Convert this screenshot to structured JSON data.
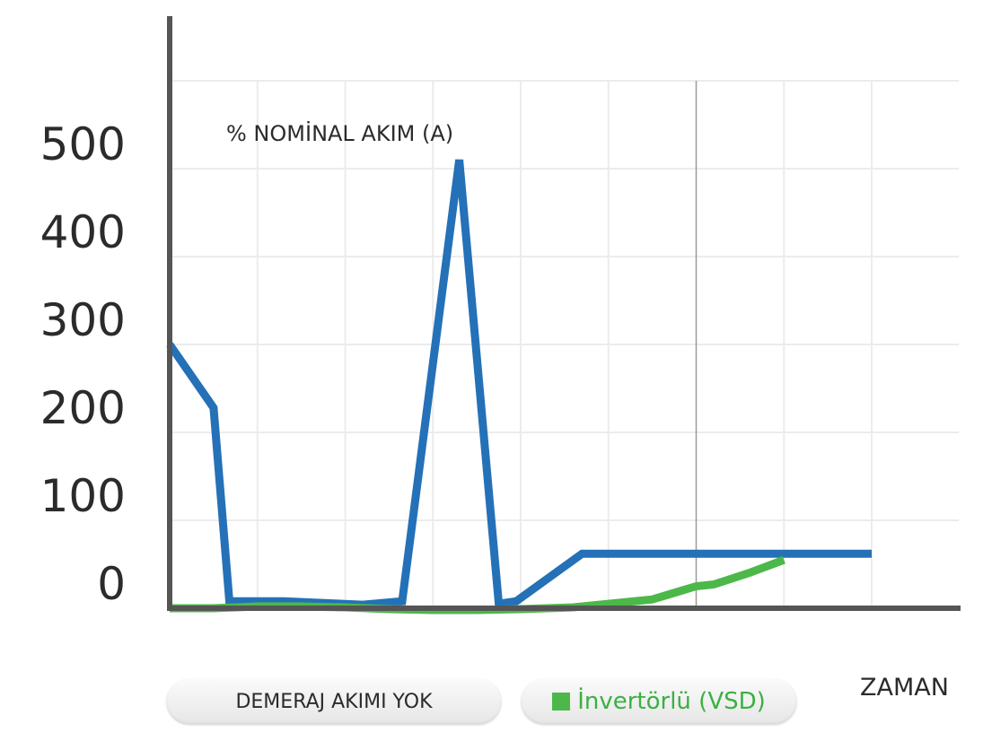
{
  "chart_data": {
    "type": "line",
    "title": "% NOMİNAL AKIM (A)",
    "xlabel": "ZAMAN",
    "ylabel": "",
    "ylim": [
      0,
      600
    ],
    "xlim": [
      0,
      8
    ],
    "y_ticks": [
      "0",
      "100",
      "200",
      "300",
      "400",
      "500"
    ],
    "grid": true,
    "legend": [
      "DEMERAJ AKIMI YOK",
      "İnvertörlü (VSD)"
    ],
    "series": [
      {
        "name": "DEMERAJ AKIMI YOK",
        "color": "#2471b8",
        "x": [
          0,
          0.5,
          0.68,
          1.3,
          2.2,
          2.65,
          3.3,
          3.75,
          3.95,
          4.7,
          5.5,
          6.5,
          7.4,
          8.0
        ],
        "y": [
          300,
          228,
          8,
          8,
          4,
          8,
          510,
          5,
          8,
          62,
          62,
          62,
          62,
          62
        ]
      },
      {
        "name": "İnvertörlü (VSD)",
        "color": "#4cb849",
        "x": [
          0,
          0.5,
          1.0,
          1.5,
          2.0,
          2.5,
          3.0,
          3.5,
          4.0,
          4.6,
          5.0,
          5.5,
          6.0,
          6.2,
          6.6,
          7.0
        ],
        "y": [
          0,
          0,
          2,
          2,
          1,
          -1,
          -2,
          -2,
          -1,
          1,
          5,
          10,
          25,
          27,
          40,
          55
        ]
      }
    ]
  }
}
